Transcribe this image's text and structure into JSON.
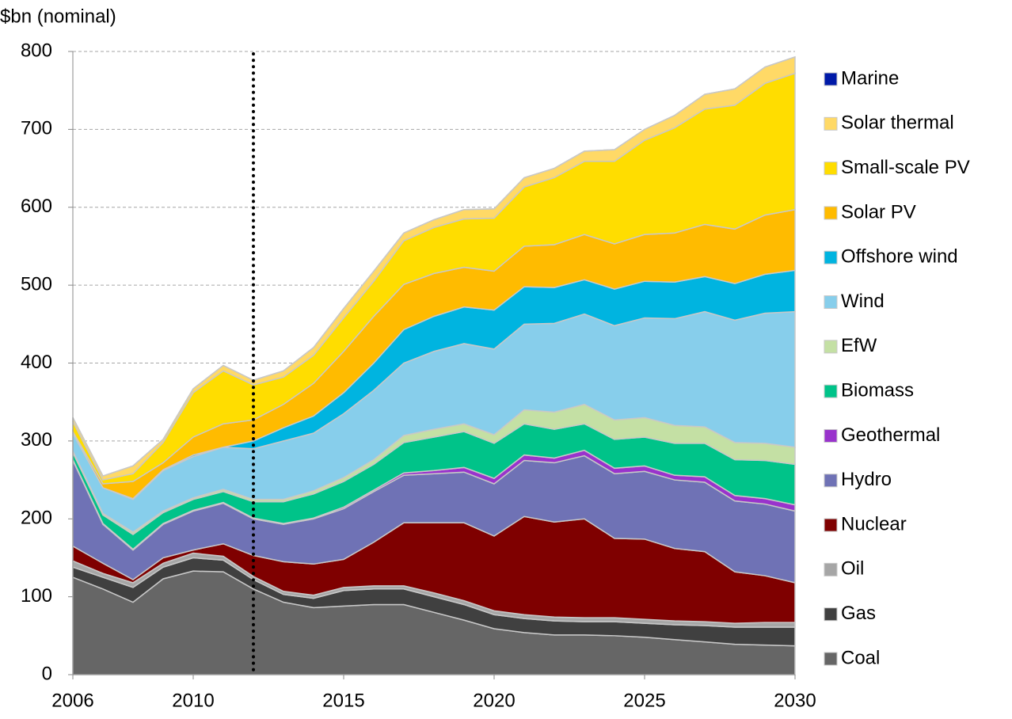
{
  "chart_data": {
    "type": "stacked_area",
    "y_axis_label": "$bn (nominal)",
    "x": [
      2006,
      2007,
      2008,
      2009,
      2010,
      2011,
      2012,
      2013,
      2014,
      2015,
      2016,
      2017,
      2018,
      2019,
      2020,
      2021,
      2022,
      2023,
      2024,
      2025,
      2026,
      2027,
      2028,
      2029,
      2030
    ],
    "xlim": [
      2006,
      2030
    ],
    "xticks": [
      2006,
      2010,
      2015,
      2020,
      2025,
      2030
    ],
    "ylim": [
      0,
      800
    ],
    "yticks": [
      0,
      100,
      200,
      300,
      400,
      500,
      600,
      700,
      800
    ],
    "grid": true,
    "vline": 2012,
    "legend": "right",
    "series": [
      {
        "name": "Coal",
        "color": "#666666",
        "values": [
          125,
          110,
          93,
          123,
          133,
          132,
          110,
          93,
          86,
          88,
          90,
          90,
          80,
          70,
          59,
          54,
          51,
          51,
          50,
          48,
          45,
          42,
          39,
          38,
          37
        ]
      },
      {
        "name": "Gas",
        "color": "#404040",
        "values": [
          13,
          15,
          19,
          15,
          17,
          15,
          12,
          10,
          12,
          20,
          20,
          20,
          20,
          20,
          18,
          18,
          18,
          17,
          18,
          18,
          19,
          21,
          22,
          23,
          24
        ]
      },
      {
        "name": "Oil",
        "color": "#a6a6a6",
        "values": [
          8,
          5,
          6,
          5,
          6,
          5,
          4,
          4,
          4,
          4,
          4,
          4,
          5,
          5,
          5,
          5,
          5,
          5,
          5,
          5,
          5,
          5,
          5,
          6,
          6
        ]
      },
      {
        "name": "Nuclear",
        "color": "#7f0000",
        "values": [
          19,
          13,
          4,
          7,
          4,
          16,
          27,
          38,
          40,
          36,
          56,
          81,
          90,
          100,
          96,
          126,
          122,
          127,
          102,
          103,
          93,
          90,
          66,
          60,
          51
        ]
      },
      {
        "name": "Hydro",
        "color": "#6f72b5",
        "values": [
          110,
          50,
          38,
          43,
          50,
          52,
          47,
          48,
          58,
          65,
          65,
          61,
          63,
          65,
          67,
          72,
          76,
          81,
          83,
          87,
          88,
          89,
          91,
          92,
          92
        ]
      },
      {
        "name": "Geothermal",
        "color": "#9933cc",
        "values": [
          1,
          1,
          1,
          1,
          1,
          1,
          1,
          1,
          1,
          2,
          2,
          3,
          4,
          6,
          7,
          7,
          6,
          7,
          7,
          7,
          6,
          7,
          7,
          7,
          8
        ]
      },
      {
        "name": "Biomass",
        "color": "#00c389",
        "values": [
          9,
          11,
          19,
          14,
          14,
          14,
          21,
          28,
          31,
          33,
          33,
          39,
          43,
          46,
          45,
          40,
          37,
          34,
          37,
          37,
          41,
          43,
          46,
          49,
          52
        ]
      },
      {
        "name": "EfW",
        "color": "#c4e0a4",
        "values": [
          2,
          2,
          3,
          2,
          2,
          3,
          3,
          3,
          4,
          5,
          6,
          9,
          10,
          10,
          11,
          18,
          22,
          25,
          25,
          25,
          23,
          21,
          22,
          22,
          22
        ]
      },
      {
        "name": "Wind",
        "color": "#87ceeb",
        "values": [
          23,
          33,
          42,
          52,
          53,
          54,
          65,
          75,
          74,
          82,
          89,
          93,
          100,
          103,
          110,
          110,
          114,
          116,
          121,
          128,
          137,
          148,
          157,
          167,
          174
        ]
      },
      {
        "name": "Offshore wind",
        "color": "#00b4e0",
        "values": [
          0,
          0,
          1,
          1,
          2,
          0,
          10,
          17,
          22,
          27,
          35,
          43,
          45,
          47,
          50,
          48,
          46,
          44,
          47,
          47,
          47,
          45,
          47,
          50,
          53
        ]
      },
      {
        "name": "Solar PV",
        "color": "#ffbb00",
        "values": [
          2,
          5,
          22,
          9,
          23,
          30,
          27,
          30,
          42,
          53,
          60,
          58,
          55,
          51,
          50,
          52,
          55,
          58,
          58,
          60,
          63,
          67,
          70,
          76,
          78
        ]
      },
      {
        "name": "Small-scale PV",
        "color": "#ffdd00",
        "values": [
          13,
          5,
          10,
          26,
          57,
          68,
          45,
          35,
          36,
          43,
          45,
          56,
          59,
          62,
          68,
          76,
          86,
          94,
          106,
          121,
          135,
          148,
          159,
          169,
          175
        ]
      },
      {
        "name": "Solar thermal",
        "color": "#ffd966",
        "values": [
          5,
          5,
          10,
          4,
          5,
          7,
          6,
          8,
          10,
          12,
          13,
          10,
          10,
          12,
          12,
          12,
          12,
          13,
          15,
          14,
          16,
          19,
          21,
          21,
          21
        ]
      },
      {
        "name": "Marine",
        "color": "#001aa8",
        "values": [
          0,
          0,
          0,
          0,
          0,
          0,
          0,
          0,
          0,
          0,
          0,
          0,
          0,
          0,
          0,
          0,
          0,
          0,
          0,
          0,
          0,
          0,
          0,
          0,
          0
        ]
      }
    ]
  }
}
